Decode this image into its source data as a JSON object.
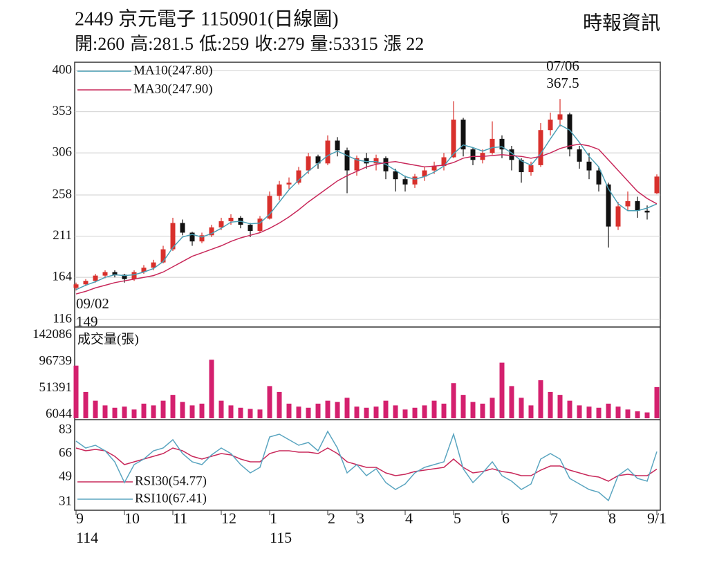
{
  "header": {
    "title": "2449  京元電子 1150901(日線圖)",
    "source": "時報資訊",
    "quote": [
      {
        "label": "開:",
        "value": 260
      },
      {
        "label": "高:",
        "value": 281.5
      },
      {
        "label": "低:",
        "value": 259
      },
      {
        "label": "收:",
        "value": 279
      },
      {
        "label": "量:",
        "value": 53315
      },
      {
        "label": "漲 ",
        "value": 22
      }
    ]
  },
  "chart_data": {
    "type": "candlestick",
    "categories": [
      "9",
      null,
      null,
      null,
      null,
      "10",
      null,
      null,
      null,
      null,
      "11",
      null,
      null,
      null,
      null,
      "12",
      null,
      null,
      null,
      null,
      "1",
      null,
      null,
      null,
      null,
      null,
      "2",
      null,
      null,
      "3",
      null,
      null,
      null,
      null,
      "4",
      null,
      null,
      null,
      null,
      "5",
      null,
      null,
      null,
      null,
      "6",
      null,
      null,
      null,
      null,
      "7",
      null,
      null,
      null,
      null,
      null,
      "8",
      null,
      null,
      null,
      null,
      "9/1"
    ],
    "years": [
      "114",
      null,
      null,
      null,
      null,
      null,
      null,
      null,
      null,
      null,
      null,
      null,
      null,
      null,
      null,
      null,
      null,
      null,
      null,
      null,
      "115",
      null,
      null,
      null,
      null,
      null,
      null,
      null,
      null,
      null,
      null,
      null,
      null,
      null,
      null,
      null,
      null,
      null,
      null,
      null,
      null,
      null,
      null,
      null,
      null,
      null,
      null,
      null,
      null,
      null,
      null,
      null,
      null,
      null,
      null,
      null,
      null,
      null,
      null,
      null,
      null
    ],
    "up_color": "#d8302c",
    "down_color": "#111111",
    "ohlc": [
      [
        152,
        158,
        149,
        156
      ],
      [
        156,
        162,
        154,
        160
      ],
      [
        160,
        168,
        158,
        166
      ],
      [
        166,
        172,
        163,
        170
      ],
      [
        170,
        172,
        164,
        167
      ],
      [
        167,
        168,
        158,
        162
      ],
      [
        162,
        172,
        160,
        170
      ],
      [
        170,
        178,
        168,
        175
      ],
      [
        175,
        184,
        172,
        181
      ],
      [
        181,
        200,
        180,
        196
      ],
      [
        196,
        232,
        194,
        226
      ],
      [
        226,
        230,
        212,
        215
      ],
      [
        215,
        216,
        200,
        205
      ],
      [
        205,
        215,
        203,
        212
      ],
      [
        212,
        224,
        210,
        221
      ],
      [
        221,
        232,
        218,
        228
      ],
      [
        228,
        236,
        224,
        232
      ],
      [
        232,
        234,
        220,
        224
      ],
      [
        224,
        226,
        210,
        217
      ],
      [
        217,
        234,
        215,
        231
      ],
      [
        231,
        262,
        230,
        257
      ],
      [
        257,
        274,
        252,
        270
      ],
      [
        270,
        278,
        265,
        272
      ],
      [
        272,
        290,
        270,
        286
      ],
      [
        286,
        306,
        282,
        302
      ],
      [
        302,
        304,
        288,
        294
      ],
      [
        294,
        326,
        292,
        320
      ],
      [
        320,
        324,
        302,
        309
      ],
      [
        309,
        312,
        260,
        286
      ],
      [
        286,
        303,
        280,
        300
      ],
      [
        300,
        306,
        288,
        294
      ],
      [
        294,
        304,
        286,
        300
      ],
      [
        300,
        302,
        276,
        285
      ],
      [
        285,
        288,
        262,
        276
      ],
      [
        276,
        280,
        262,
        270
      ],
      [
        270,
        282,
        266,
        279
      ],
      [
        279,
        290,
        274,
        286
      ],
      [
        286,
        296,
        282,
        291
      ],
      [
        291,
        306,
        286,
        301
      ],
      [
        301,
        365,
        300,
        344
      ],
      [
        344,
        346,
        302,
        310
      ],
      [
        310,
        312,
        292,
        298
      ],
      [
        298,
        310,
        294,
        306
      ],
      [
        306,
        342,
        304,
        322
      ],
      [
        322,
        326,
        300,
        310
      ],
      [
        310,
        314,
        286,
        298
      ],
      [
        298,
        300,
        272,
        284
      ],
      [
        284,
        296,
        280,
        292
      ],
      [
        292,
        340,
        290,
        332
      ],
      [
        332,
        352,
        326,
        344
      ],
      [
        344,
        367.5,
        336,
        350
      ],
      [
        350,
        352,
        302,
        310
      ],
      [
        310,
        314,
        288,
        296
      ],
      [
        296,
        306,
        276,
        286
      ],
      [
        286,
        290,
        262,
        270
      ],
      [
        270,
        272,
        198,
        222
      ],
      [
        222,
        250,
        218,
        245
      ],
      [
        245,
        262,
        240,
        251
      ],
      [
        251,
        256,
        232,
        240
      ],
      [
        240,
        246,
        230,
        238
      ],
      [
        260,
        281.5,
        259,
        279
      ]
    ],
    "ylim": [
      116,
      400
    ],
    "yticks": [
      116,
      164,
      211,
      258,
      306,
      353,
      400
    ],
    "grid": true,
    "series": [
      {
        "name": "MA10(247.80)",
        "color": "#4a9fb5",
        "values": [
          150,
          155,
          159,
          164,
          167,
          166,
          167,
          170,
          174,
          182,
          198,
          210,
          213,
          210,
          214,
          220,
          227,
          228,
          225,
          226,
          236,
          250,
          264,
          275,
          285,
          294,
          303,
          308,
          303,
          298,
          296,
          296,
          293,
          286,
          279,
          276,
          279,
          284,
          291,
          305,
          315,
          312,
          308,
          312,
          313,
          306,
          297,
          292,
          305,
          322,
          338,
          332,
          318,
          302,
          290,
          265,
          248,
          240,
          240,
          243,
          247.8
        ]
      },
      {
        "name": "MA30(247.90)",
        "color": "#c8285a",
        "values": [
          145,
          148,
          152,
          155,
          158,
          160,
          162,
          164,
          166,
          170,
          176,
          182,
          188,
          192,
          196,
          200,
          205,
          209,
          212,
          215,
          220,
          226,
          233,
          241,
          250,
          258,
          266,
          274,
          280,
          285,
          290,
          293,
          295,
          296,
          294,
          292,
          290,
          291,
          292,
          295,
          300,
          302,
          302,
          303,
          304,
          303,
          302,
          300,
          302,
          306,
          311,
          314,
          316,
          314,
          310,
          298,
          286,
          274,
          262,
          254,
          247.9
        ]
      }
    ],
    "annotations": [
      {
        "date": "07/06",
        "value": 367.5
      },
      {
        "date": "09/02",
        "value": 149
      }
    ],
    "volume": {
      "name": "成交量(張)",
      "color": "#d4206e",
      "ylim": [
        0,
        150000
      ],
      "yticks": [
        6044,
        51391,
        96739,
        142086
      ],
      "values": [
        90000,
        45000,
        30000,
        22000,
        18000,
        20000,
        15000,
        25000,
        22000,
        30000,
        40000,
        28000,
        22000,
        25000,
        100000,
        30000,
        22000,
        18000,
        16000,
        15000,
        55000,
        45000,
        25000,
        20000,
        18000,
        25000,
        30000,
        28000,
        35000,
        20000,
        18000,
        20000,
        30000,
        22000,
        15000,
        18000,
        22000,
        30000,
        25000,
        60000,
        40000,
        28000,
        25000,
        35000,
        95000,
        55000,
        35000,
        22000,
        65000,
        45000,
        40000,
        30000,
        22000,
        20000,
        18000,
        25000,
        20000,
        15000,
        12000,
        10000,
        53315
      ]
    },
    "rsi": {
      "ylim": [
        25,
        90
      ],
      "yticks": [
        31,
        49,
        66,
        83
      ],
      "series": [
        {
          "name": "RSI30(54.77)",
          "color": "#c8285a",
          "values": [
            70,
            68,
            69,
            68,
            64,
            58,
            60,
            62,
            64,
            66,
            70,
            68,
            64,
            62,
            64,
            66,
            65,
            62,
            60,
            60,
            66,
            68,
            68,
            67,
            67,
            66,
            70,
            66,
            60,
            58,
            56,
            56,
            52,
            50,
            51,
            53,
            54,
            55,
            56,
            62,
            56,
            52,
            53,
            55,
            53,
            52,
            50,
            50,
            54,
            57,
            57,
            54,
            52,
            50,
            49,
            46,
            50,
            51,
            50,
            50,
            54.77
          ]
        },
        {
          "name": "RSI10(67.41)",
          "color": "#5aa5c0",
          "values": [
            75,
            70,
            72,
            68,
            60,
            45,
            58,
            62,
            68,
            70,
            76,
            66,
            60,
            58,
            65,
            70,
            66,
            58,
            52,
            56,
            78,
            80,
            76,
            72,
            74,
            68,
            82,
            70,
            52,
            58,
            50,
            55,
            45,
            40,
            44,
            52,
            56,
            58,
            60,
            80,
            55,
            45,
            52,
            60,
            50,
            46,
            40,
            44,
            62,
            66,
            62,
            48,
            44,
            40,
            38,
            32,
            50,
            55,
            48,
            46,
            67.41
          ]
        }
      ]
    }
  }
}
